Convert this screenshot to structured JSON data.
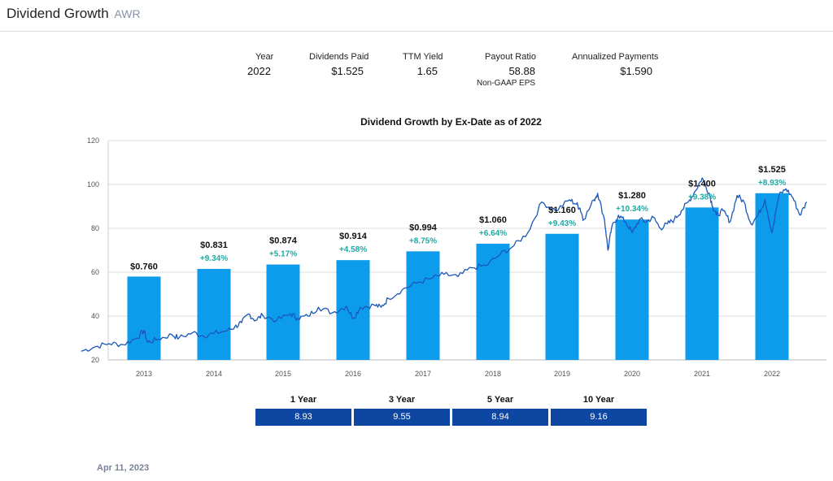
{
  "header": {
    "title": "Dividend Growth",
    "ticker": "AWR"
  },
  "stats": {
    "year_label": "Year",
    "year_value": "2022",
    "dividends_label": "Dividends Paid",
    "dividends_value": "$1.525",
    "yield_label": "TTM Yield",
    "yield_value": "1.65",
    "payout_label": "Payout Ratio",
    "payout_value": "58.88",
    "payout_sub": "Non-GAAP EPS",
    "annualized_label": "Annualized Payments",
    "annualized_value": "$1.590"
  },
  "chart_data": {
    "type": "bar",
    "title": "Dividend Growth by Ex-Date as of 2022",
    "categories": [
      "2013",
      "2014",
      "2015",
      "2016",
      "2017",
      "2018",
      "2019",
      "2020",
      "2021",
      "2022"
    ],
    "bar_heights": [
      58,
      61.5,
      63.5,
      65.5,
      69.5,
      73,
      77.5,
      84,
      89.5,
      96
    ],
    "dividend_labels": [
      "$0.760",
      "$0.831",
      "$0.874",
      "$0.914",
      "$0.994",
      "$1.060",
      "$1.160",
      "$1.280",
      "$1.400",
      "$1.525"
    ],
    "growth_labels": [
      "",
      "+9.34%",
      "+5.17%",
      "+4.58%",
      "+8.75%",
      "+6.64%",
      "+9.43%",
      "+10.34%",
      "+9.38%",
      "+8.93%"
    ],
    "ylim": [
      20,
      120
    ],
    "yticks": [
      "20",
      "40",
      "60",
      "80",
      "100",
      "120"
    ],
    "grid": true,
    "price_series": {
      "name": "Share price",
      "x": [
        2012.6,
        2012.8,
        2013.0,
        2013.2,
        2013.4,
        2013.5,
        2013.55,
        2013.7,
        2013.9,
        2014.0,
        2014.2,
        2014.35,
        2014.5,
        2014.7,
        2014.8,
        2014.9,
        2015.0,
        2015.1,
        2015.2,
        2015.4,
        2015.6,
        2015.7,
        2015.85,
        2016.0,
        2016.2,
        2016.4,
        2016.5,
        2016.6,
        2016.8,
        2016.9,
        2017.0,
        2017.2,
        2017.4,
        2017.6,
        2017.8,
        2018.0,
        2018.2,
        2018.4,
        2018.6,
        2018.8,
        2019.0,
        2019.2,
        2019.4,
        2019.6,
        2019.7,
        2019.75,
        2019.8,
        2019.95,
        2020.0,
        2020.1,
        2020.15,
        2020.2,
        2020.3,
        2020.4,
        2020.5,
        2020.6,
        2020.7,
        2020.8,
        2020.9,
        2021.0,
        2021.1,
        2021.2,
        2021.3,
        2021.4,
        2021.5,
        2021.6,
        2021.65,
        2021.7,
        2021.8,
        2021.9,
        2022.0,
        2022.1,
        2022.2,
        2022.3,
        2022.4,
        2022.5,
        2022.6,
        2022.7,
        2022.8,
        2022.9,
        2023.0
      ],
      "y": [
        24,
        26,
        27.5,
        27,
        30,
        33.5,
        28,
        29.5,
        31.5,
        30,
        32.5,
        31,
        32,
        33.5,
        35,
        37,
        41,
        38,
        40.5,
        38,
        41,
        39,
        40,
        44,
        41.5,
        44.5,
        39,
        44,
        45,
        44,
        48,
        52,
        55,
        57,
        59,
        58,
        62,
        63,
        68,
        72,
        78,
        92,
        88,
        93,
        91,
        89,
        84,
        93,
        96,
        84,
        70,
        80,
        86,
        83,
        78,
        84,
        83,
        85,
        80,
        82,
        84,
        88,
        92,
        97,
        103,
        96,
        90,
        86,
        88,
        83,
        95,
        92,
        82,
        86,
        93,
        78,
        95,
        98,
        94,
        86,
        92
      ]
    }
  },
  "growth_periods": [
    {
      "label": "1 Year",
      "value": "8.93"
    },
    {
      "label": "3 Year",
      "value": "9.55"
    },
    {
      "label": "5 Year",
      "value": "8.94"
    },
    {
      "label": "10 Year",
      "value": "9.16"
    }
  ],
  "footer": {
    "date": "Apr 11, 2023"
  },
  "colors": {
    "bar": "#0d9cec",
    "line": "#1a57b8",
    "growth": "#1fa9a3",
    "box": "#0d47a1",
    "grid": "#dddddd",
    "axis_text": "#555555"
  }
}
